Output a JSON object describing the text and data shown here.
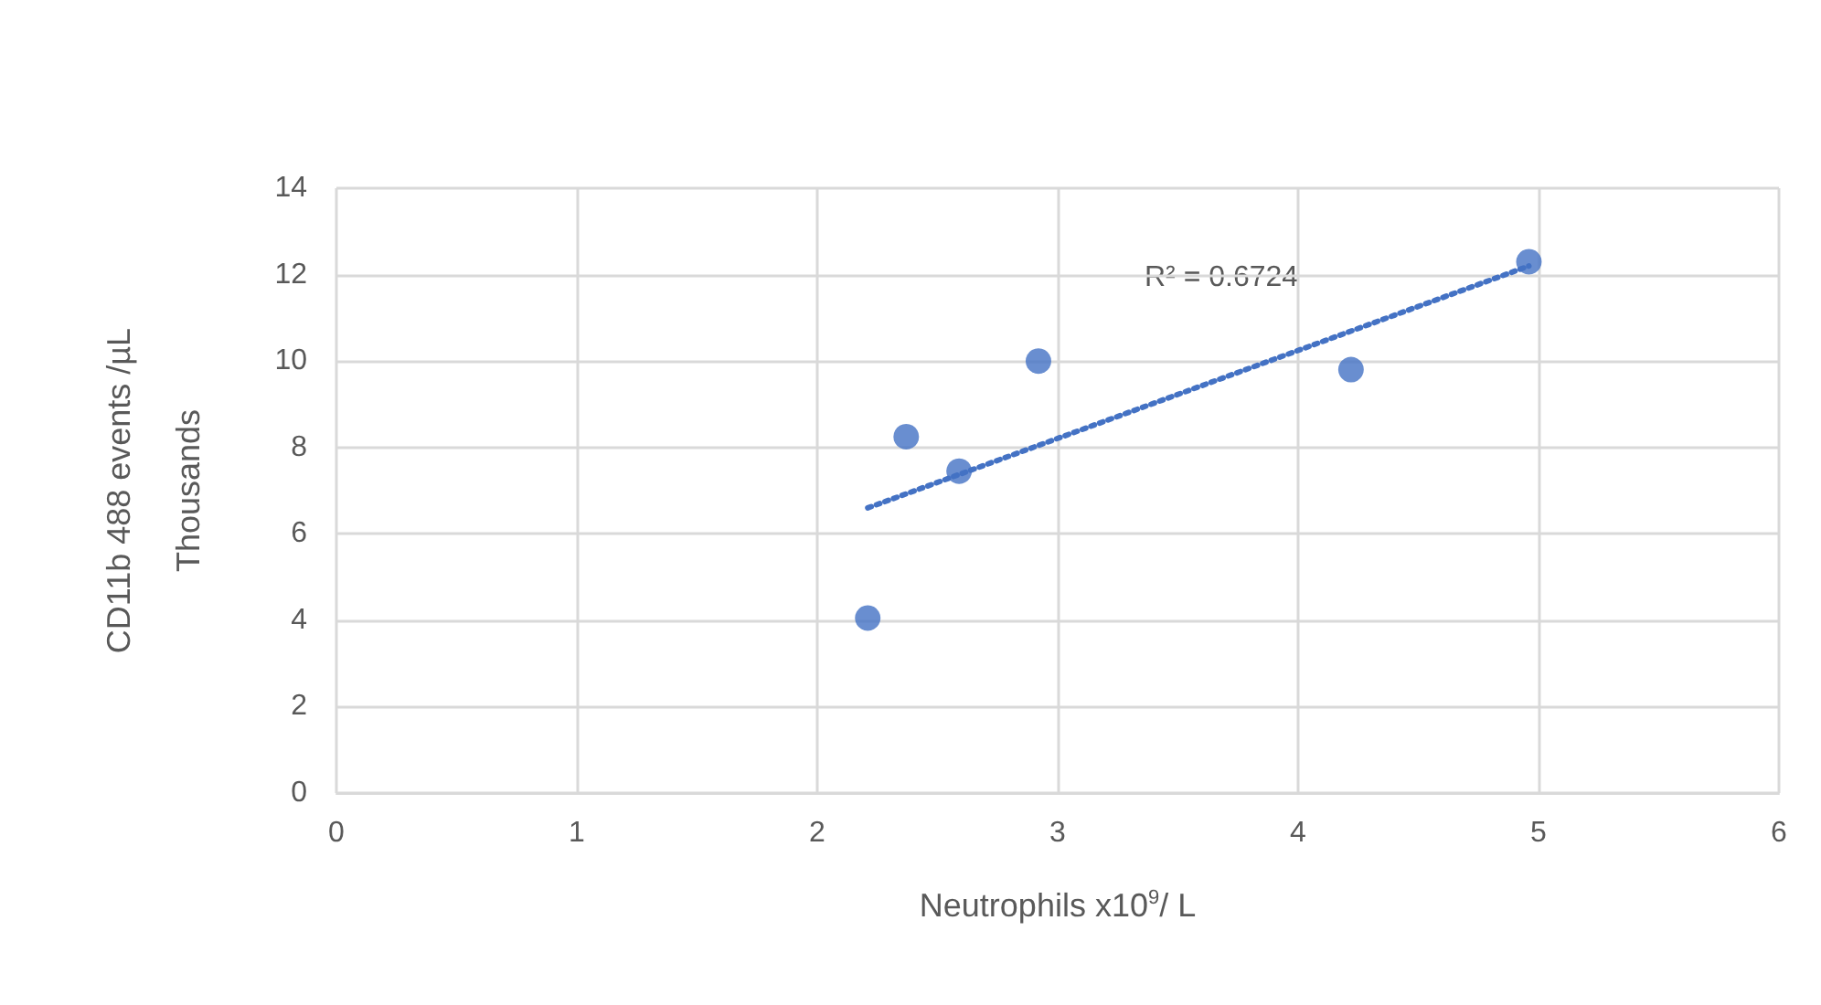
{
  "chart_data": {
    "type": "scatter",
    "xlabel": "Neutrophils x10$^{9}$/ L",
    "ylabel": "CD11b 488 events /µL\nThousands",
    "x": [
      2.21,
      2.37,
      2.59,
      2.92,
      4.22,
      4.96
    ],
    "series": [
      {
        "color": "#4472c4",
        "marker": "circle",
        "values": [
          4.05,
          8.25,
          7.45,
          10.0,
          9.8,
          12.3
        ]
      },
      {
        "type": "line",
        "color": "#4472c4",
        "line_style": "dotted",
        "x": [
          2.21,
          4.96
        ],
        "values": [
          6.6,
          12.2
        ]
      }
    ],
    "annotations": [
      "R² = 0.6724"
    ],
    "xlim": [
      0,
      6
    ],
    "xticks": [
      0,
      1,
      2,
      3,
      4,
      5,
      6
    ],
    "ylim": [
      0,
      14
    ],
    "yticks": [
      0,
      2,
      4,
      6,
      8,
      10,
      12,
      14
    ],
    "grid": true
  }
}
